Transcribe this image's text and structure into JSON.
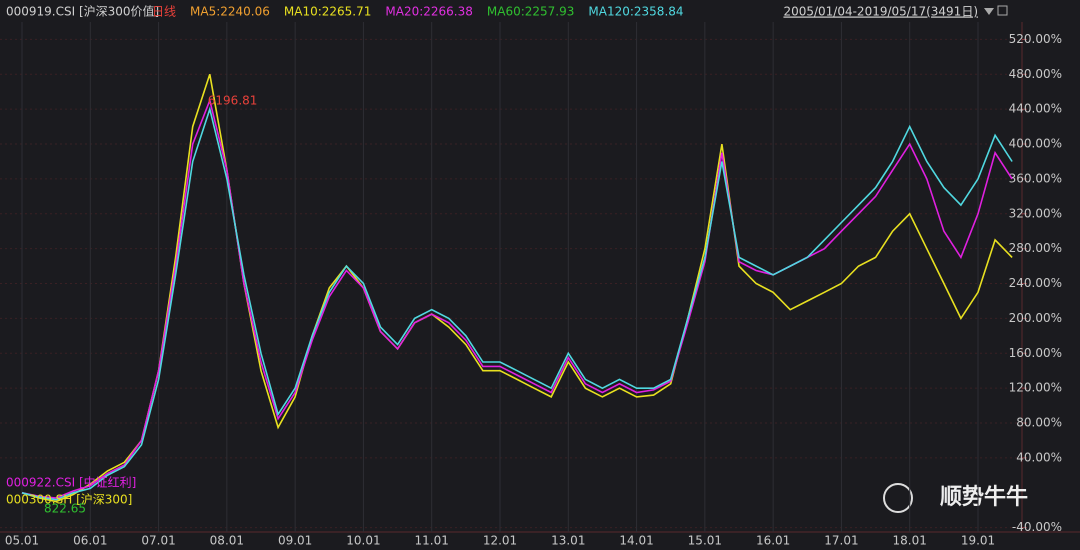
{
  "chart_data": {
    "type": "line",
    "title": "000919.CSI [沪深300价值]",
    "header_items": [
      {
        "text": "日线",
        "color": "#e8413a"
      },
      {
        "text": "MA5:2240.06",
        "color": "#f0a030"
      },
      {
        "text": "MA10:2265.71",
        "color": "#e8e020"
      },
      {
        "text": "MA20:2266.38",
        "color": "#e030e0"
      },
      {
        "text": "MA60:2257.93",
        "color": "#30c030"
      },
      {
        "text": "MA120:2358.84",
        "color": "#50d8e0"
      }
    ],
    "date_range": "2005/01/04-2019/05/17(3491日)",
    "categories": [
      "05.01",
      null,
      null,
      null,
      "06.01",
      null,
      null,
      null,
      "07.01",
      null,
      null,
      null,
      "08.01",
      null,
      null,
      null,
      "09.01",
      null,
      null,
      null,
      "10.01",
      null,
      null,
      null,
      "11.01",
      null,
      null,
      null,
      "12.01",
      null,
      null,
      null,
      "13.01",
      null,
      null,
      null,
      "14.01",
      null,
      null,
      null,
      "15.01",
      null,
      null,
      null,
      "16.01",
      null,
      null,
      null,
      "17.01",
      null,
      null,
      null,
      "18.01",
      null,
      null,
      null,
      "19.01",
      null,
      null
    ],
    "series": [
      {
        "name": "000919.CSI [沪深300价值]",
        "color": "#50d8e0",
        "values": [
          0,
          -5,
          -8,
          0,
          5,
          20,
          30,
          55,
          130,
          250,
          380,
          440,
          360,
          250,
          160,
          90,
          120,
          180,
          230,
          260,
          240,
          190,
          170,
          200,
          210,
          200,
          180,
          150,
          150,
          140,
          130,
          120,
          160,
          130,
          120,
          130,
          120,
          120,
          130,
          200,
          270,
          380,
          270,
          260,
          250,
          260,
          270,
          290,
          310,
          330,
          350,
          380,
          420,
          380,
          350,
          330,
          360,
          410,
          380
        ]
      },
      {
        "name": "000922.CSI [中证红利]",
        "color": "#e020e0",
        "values": [
          0,
          -4,
          -6,
          2,
          8,
          22,
          32,
          60,
          140,
          260,
          400,
          450,
          370,
          240,
          150,
          85,
          115,
          175,
          225,
          255,
          235,
          185,
          165,
          195,
          205,
          195,
          175,
          145,
          145,
          135,
          125,
          115,
          155,
          125,
          115,
          125,
          115,
          118,
          128,
          195,
          265,
          390,
          265,
          255,
          250,
          260,
          270,
          280,
          300,
          320,
          340,
          370,
          400,
          360,
          300,
          270,
          320,
          390,
          360
        ]
      },
      {
        "name": "000300.SH [沪深300]",
        "color": "#e8e020",
        "values": [
          0,
          -6,
          -10,
          -2,
          10,
          25,
          35,
          60,
          140,
          270,
          420,
          480,
          370,
          240,
          140,
          75,
          110,
          180,
          235,
          260,
          235,
          185,
          165,
          195,
          205,
          190,
          170,
          140,
          140,
          130,
          120,
          110,
          150,
          120,
          110,
          120,
          110,
          112,
          125,
          200,
          280,
          400,
          260,
          240,
          230,
          210,
          220,
          230,
          240,
          260,
          270,
          300,
          320,
          280,
          240,
          200,
          230,
          290,
          270
        ]
      }
    ],
    "ylim": [
      -45,
      540
    ],
    "yticks": [
      {
        "value": -40,
        "label": "-40.00%"
      },
      {
        "value": 40,
        "label": "40.00%"
      },
      {
        "value": 80,
        "label": "80.00%"
      },
      {
        "value": 120,
        "label": "120.00%"
      },
      {
        "value": 160,
        "label": "160.00%"
      },
      {
        "value": 200,
        "label": "200.00%"
      },
      {
        "value": 240,
        "label": "240.00%"
      },
      {
        "value": 280,
        "label": "280.00%"
      },
      {
        "value": 320,
        "label": "320.00%"
      },
      {
        "value": 360,
        "label": "360.00%"
      },
      {
        "value": 400,
        "label": "400.00%"
      },
      {
        "value": 440,
        "label": "440.00%"
      },
      {
        "value": 480,
        "label": "480.00%"
      },
      {
        "value": 520,
        "label": "520.00%"
      }
    ],
    "grid": true,
    "annotations": [
      {
        "text": "6196.81",
        "color": "#e8413a"
      },
      {
        "text": "822.65",
        "color": "#30c030"
      }
    ],
    "watermark": "顺势牛牛"
  }
}
